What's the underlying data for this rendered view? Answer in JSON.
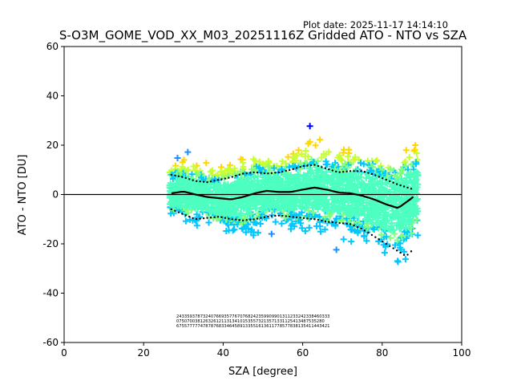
{
  "plot_date": "Plot date: 2025-11-17 14:14:10",
  "chart_data": {
    "type": "scatter",
    "title": "S-O3M_GOME_VOD_XX_M03_20251116Z Gridded ATO - NTO vs SZA",
    "xlabel": "SZA [degree]",
    "ylabel": "ATO - NTO [DU]",
    "xlim": [
      0,
      100
    ],
    "ylim": [
      -60,
      60
    ],
    "xticks": [
      0,
      20,
      40,
      60,
      80,
      100
    ],
    "yticks": [
      -60,
      -40,
      -20,
      0,
      20,
      40,
      60
    ],
    "reference_line": 0,
    "marker": "+",
    "scatter_sza_range": [
      26.5,
      89
    ],
    "color_classes": [
      "#0000ff",
      "#1e90ff",
      "#00c8ff",
      "#4dffc0",
      "#7fff7f",
      "#c8ff32",
      "#ffd700"
    ],
    "mean_curve": {
      "x": [
        27,
        30,
        33,
        36,
        39,
        42,
        45,
        48,
        51,
        54,
        57,
        60,
        63,
        66,
        69,
        72,
        75,
        78,
        81,
        84,
        87,
        88.5
      ],
      "y": [
        0.5,
        1.2,
        0,
        -1,
        -1.5,
        -2,
        -1,
        0.5,
        1.5,
        1,
        1,
        2,
        2.8,
        2,
        0.8,
        0.5,
        -0.5,
        -2,
        -4,
        -5.5,
        -2,
        0
      ]
    },
    "upper_sd_curve": {
      "x": [
        27,
        30,
        33,
        36,
        39,
        42,
        45,
        48,
        51,
        54,
        57,
        60,
        63,
        66,
        69,
        72,
        75,
        78,
        81,
        84,
        86,
        88
      ],
      "y": [
        8,
        7,
        5.5,
        5,
        6,
        7,
        8.5,
        9,
        8.5,
        9,
        10,
        11.5,
        12,
        10.5,
        9,
        9.5,
        9.5,
        8,
        6,
        4,
        3,
        2
      ]
    },
    "lower_sd_curve": {
      "x": [
        27,
        30,
        33,
        36,
        39,
        42,
        45,
        48,
        51,
        54,
        57,
        60,
        63,
        66,
        69,
        72,
        75,
        78,
        81,
        84,
        86,
        88
      ],
      "y": [
        -6,
        -8,
        -10,
        -9.5,
        -9,
        -10,
        -10.5,
        -10,
        -9,
        -8.5,
        -9,
        -9.5,
        -10,
        -11,
        -11.5,
        -12,
        -14,
        -17,
        -20,
        -23,
        -25,
        -22
      ]
    },
    "count_rows": [
      "2433593787324076693577670768242359909901311233242338460333",
      "07507003812632612113134101535573213571331125413487535280",
      "6755777774787876833464589133551613611778577838135411443421"
    ]
  }
}
